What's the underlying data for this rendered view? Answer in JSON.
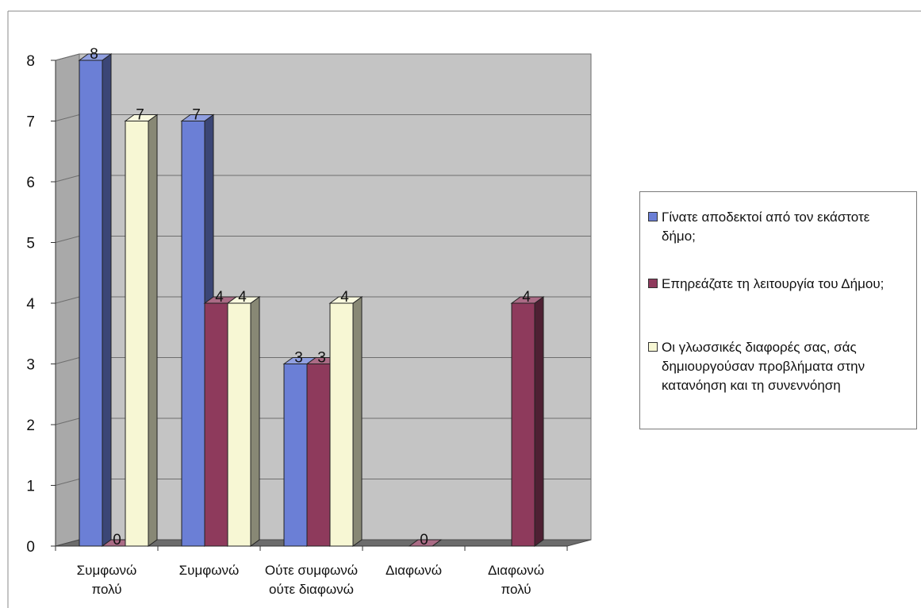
{
  "chart_data": {
    "type": "bar",
    "categories": [
      "Συμφωνώ πολύ",
      "Συμφωνώ",
      "Ούτε συμφωνώ ούτε διαφωνώ",
      "Διαφωνώ",
      "Διαφωνώ πολύ"
    ],
    "category_label_lines": [
      [
        "Συμφωνώ",
        "πολύ"
      ],
      [
        "Συμφωνώ"
      ],
      [
        "Ούτε συμφωνώ",
        "ούτε διαφωνώ"
      ],
      [
        "Διαφωνώ"
      ],
      [
        "Διαφωνώ",
        "πολύ"
      ]
    ],
    "series": [
      {
        "name": "Γίνατε αποδεκτοί από τον εκάστοτε δήμο;",
        "values": [
          8,
          7,
          3,
          null,
          null
        ],
        "color": "#6b7fd6"
      },
      {
        "name": "Επηρεάζατε τη λειτουργία του Δήμου;",
        "values": [
          0,
          4,
          3,
          0,
          4
        ],
        "color": "#8e3a5c"
      },
      {
        "name": "Οι γλωσσικές διαφορές σας, σάς δημιουργούσαν προβλήματα στην κατανόηση και τη συνεννόηση",
        "values": [
          7,
          4,
          4,
          null,
          null
        ],
        "color": "#f7f7d4"
      }
    ],
    "ylim": [
      0,
      8
    ],
    "yticks": [
      0,
      1,
      2,
      3,
      4,
      5,
      6,
      7,
      8
    ],
    "grid": true,
    "legend": "right",
    "title": "",
    "xlabel": "",
    "ylabel": ""
  },
  "legend_display": [
    {
      "lines": [
        "Γίνατε αποδεκτοί από τον εκάστοτε",
        "δήμο;"
      ]
    },
    {
      "lines": [
        "Επηρεάζατε τη λειτουργία του Δήμου;"
      ]
    },
    {
      "lines": [
        "Οι γλωσσικές διαφορές σας, σάς",
        "δημιουργούσαν προβλήματα στην",
        "κατανόηση και τη συνεννόηση"
      ]
    }
  ]
}
